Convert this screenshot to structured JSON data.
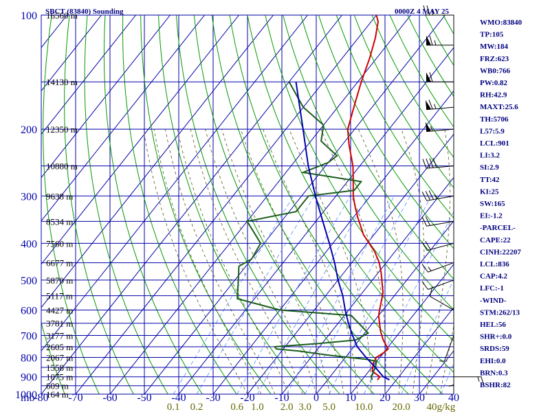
{
  "chart_data": {
    "type": "line",
    "title": "SBCT (83840) Sounding",
    "valid_time": "0000Z  4 MAY 25",
    "axis_unit_label": "mb",
    "pressure_levels": [
      100,
      200,
      300,
      400,
      500,
      600,
      700,
      800,
      900,
      1000
    ],
    "pressure_range": [
      100,
      1000
    ],
    "temperature_ticks": [
      -80,
      -70,
      -60,
      -50,
      -40,
      -30,
      -20,
      -10,
      0,
      10,
      20,
      30,
      40
    ],
    "temperature_range": [
      -80,
      40
    ],
    "mixing_ratio_labels": [
      "0.1",
      "0.2",
      "0.6",
      "1.0",
      "2.0",
      "3.0",
      "5.0",
      "10.0",
      "20.0",
      "40g/kg"
    ],
    "height_labels": [
      {
        "p": 100,
        "text": "16560 m"
      },
      {
        "p": 150,
        "text": "14130 m"
      },
      {
        "p": 200,
        "text": "12350 m"
      },
      {
        "p": 250,
        "text": "10880 m"
      },
      {
        "p": 300,
        "text": "9638 m"
      },
      {
        "p": 350,
        "text": "8534 m"
      },
      {
        "p": 400,
        "text": "7560 m"
      },
      {
        "p": 450,
        "text": "6677 m"
      },
      {
        "p": 500,
        "text": "5870 m"
      },
      {
        "p": 550,
        "text": "5117 m"
      },
      {
        "p": 600,
        "text": "4427 m"
      },
      {
        "p": 650,
        "text": "3781 m"
      },
      {
        "p": 700,
        "text": "3177 m"
      },
      {
        "p": 750,
        "text": "2605 m"
      },
      {
        "p": 800,
        "text": "2067 m"
      },
      {
        "p": 850,
        "text": "1558 m"
      },
      {
        "p": 900,
        "text": "1075 m"
      },
      {
        "p": 950,
        "text": "609 m"
      },
      {
        "p": 1000,
        "text": "164 m"
      }
    ],
    "series": [
      {
        "key": "temperature",
        "color": "#cc0000",
        "points": [
          [
            917,
            14.5
          ],
          [
            900,
            14.5
          ],
          [
            870,
            11
          ],
          [
            830,
            9.5
          ],
          [
            800,
            9
          ],
          [
            780,
            10
          ],
          [
            760,
            10.5
          ],
          [
            720,
            7
          ],
          [
            680,
            4
          ],
          [
            620,
            0
          ],
          [
            600,
            -1
          ],
          [
            540,
            -4
          ],
          [
            480,
            -9
          ],
          [
            450,
            -12
          ],
          [
            420,
            -16
          ],
          [
            380,
            -23
          ],
          [
            340,
            -29
          ],
          [
            320,
            -32
          ],
          [
            300,
            -35
          ],
          [
            270,
            -39
          ],
          [
            250,
            -42
          ],
          [
            220,
            -48
          ],
          [
            200,
            -52
          ],
          [
            170,
            -56
          ],
          [
            150,
            -59
          ],
          [
            130,
            -62
          ],
          [
            115,
            -65
          ],
          [
            104,
            -68
          ],
          [
            100,
            -70
          ]
        ]
      },
      {
        "key": "dewpoint",
        "color": "#1a5c1a",
        "points": [
          [
            917,
            13
          ],
          [
            900,
            12
          ],
          [
            850,
            11
          ],
          [
            820,
            10
          ],
          [
            810,
            7
          ],
          [
            790,
            -5
          ],
          [
            770,
            -15
          ],
          [
            760,
            -22
          ],
          [
            750,
            -23
          ],
          [
            735,
            -11
          ],
          [
            720,
            -1
          ],
          [
            690,
            1
          ],
          [
            620,
            -8
          ],
          [
            600,
            -30
          ],
          [
            560,
            -45
          ],
          [
            500,
            -49
          ],
          [
            460,
            -52
          ],
          [
            440,
            -50
          ],
          [
            400,
            -51
          ],
          [
            350,
            -60
          ],
          [
            330,
            -48
          ],
          [
            300,
            -48
          ],
          [
            290,
            -36
          ],
          [
            275,
            -36
          ],
          [
            260,
            -55
          ],
          [
            245,
            -50
          ],
          [
            235,
            -49
          ],
          [
            215,
            -57
          ],
          [
            195,
            -60
          ],
          [
            175,
            -70
          ],
          [
            150,
            -80
          ]
        ]
      },
      {
        "key": "parcel",
        "color": "#0000aa",
        "points": [
          [
            917,
            18
          ],
          [
            900,
            15.5
          ],
          [
            850,
            11
          ],
          [
            800,
            6
          ],
          [
            750,
            1
          ],
          [
            700,
            -3
          ],
          [
            650,
            -7
          ],
          [
            600,
            -11
          ],
          [
            550,
            -15
          ],
          [
            500,
            -20
          ],
          [
            450,
            -25
          ],
          [
            400,
            -31
          ],
          [
            350,
            -38
          ],
          [
            300,
            -46
          ],
          [
            250,
            -55
          ],
          [
            200,
            -65
          ],
          [
            150,
            -78
          ]
        ]
      }
    ],
    "wind_barbs": [
      {
        "p": 100,
        "dir": 270,
        "spd": 25
      },
      {
        "p": 120,
        "dir": 270,
        "spd": 65
      },
      {
        "p": 150,
        "dir": 270,
        "spd": 60
      },
      {
        "p": 175,
        "dir": 265,
        "spd": 65
      },
      {
        "p": 200,
        "dir": 265,
        "spd": 55
      },
      {
        "p": 250,
        "dir": 265,
        "spd": 40
      },
      {
        "p": 300,
        "dir": 260,
        "spd": 35
      },
      {
        "p": 350,
        "dir": 260,
        "spd": 20
      },
      {
        "p": 400,
        "dir": 255,
        "spd": 20
      },
      {
        "p": 450,
        "dir": 250,
        "spd": 15
      },
      {
        "p": 500,
        "dir": 250,
        "spd": 10
      },
      {
        "p": 600,
        "dir": 300,
        "spd": 10
      },
      {
        "p": 700,
        "dir": 200,
        "spd": 5
      },
      {
        "p": 800,
        "dir": 180,
        "spd": 5
      },
      {
        "p": 900,
        "dir": 90,
        "spd": 15
      }
    ],
    "indices": [
      "WMO:83840",
      "TP:105",
      "MW:184",
      "FRZ:623",
      "WB0:766",
      "PW:0.82",
      "RH:42.9",
      "MAXT:25.6",
      "TH:5706",
      "L57:5.9",
      "LCL:901",
      "LI:3.2",
      "SI:2.9",
      "TT:42",
      "KI:25",
      "SW:165",
      "EI:-1.2",
      "-PARCEL-",
      "CAPE:22",
      "CINH:22207",
      "LCL:836",
      "CAP:4.2",
      "LFC:-1",
      "-WIND-",
      "STM:262/13",
      "HEL:56",
      "SHR+:0.0",
      "SRDS:59",
      "EHI:0.0",
      "BRN:0.3",
      "BSHR:82"
    ],
    "colors": {
      "grid": "#0000aa",
      "dry_adiabat": "#009900",
      "moist_adiabat": "#666633",
      "mixing_ratio": "#6699ff",
      "temperature": "#cc0000",
      "dewpoint": "#1a5c1a",
      "parcel": "#0000aa",
      "wind_barb": "#000000",
      "axis_text": "#0000aa",
      "mixing_label": "#666600",
      "title": "#000080",
      "indices": "#000080"
    }
  }
}
